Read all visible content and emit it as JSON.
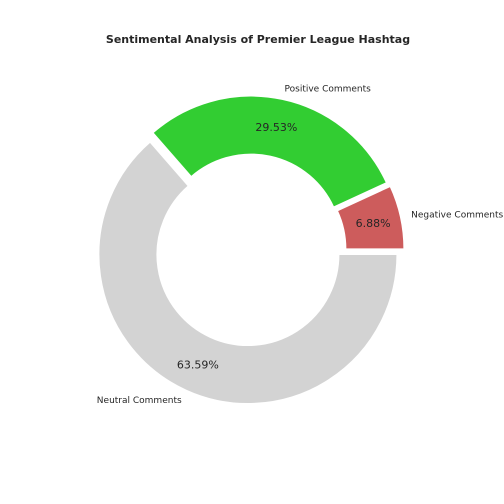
{
  "chart_data": {
    "type": "pie",
    "style": "donut",
    "title": "Sentimental Analysis of Premier League Hashtag",
    "slices": [
      {
        "label": "Negative Comments",
        "value": 6.88,
        "pct_label": "6.88%",
        "color": "#cd5c5c",
        "exploded": true
      },
      {
        "label": "Positive Comments",
        "value": 29.53,
        "pct_label": "29.53%",
        "color": "#32cd32",
        "exploded": true
      },
      {
        "label": "Neutral Comments",
        "value": 63.59,
        "pct_label": "63.59%",
        "color": "#d3d3d3",
        "exploded": true
      }
    ],
    "start_angle_deg": 0,
    "direction": "counterclockwise",
    "background": "#ffffff"
  }
}
